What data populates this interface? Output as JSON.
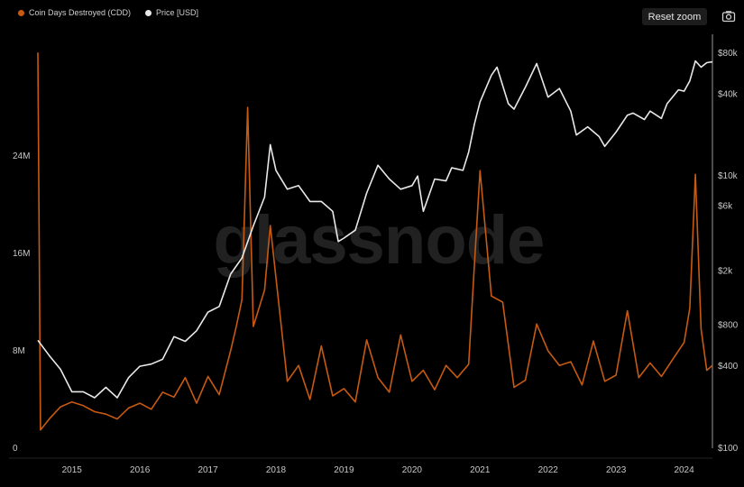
{
  "legend": {
    "cdd_label": "Coin Days Destroyed (CDD)",
    "price_label": "Price [USD]"
  },
  "toolbar": {
    "reset_zoom_label": "Reset zoom",
    "camera_icon": "camera-icon"
  },
  "watermark": "glassnode",
  "colors": {
    "background": "#000000",
    "cdd": "#c75a12",
    "price": "#e8e8e8",
    "axis": "#9a9a9a"
  },
  "chart_data": {
    "type": "line",
    "x_range": [
      "2014-07",
      "2024-06"
    ],
    "x_tick_labels": [
      "2015",
      "2016",
      "2017",
      "2018",
      "2019",
      "2020",
      "2021",
      "2022",
      "2023",
      "2024"
    ],
    "y_left": {
      "ticks": [
        0,
        8000000,
        16000000,
        24000000
      ],
      "tick_labels": [
        "0",
        "8M",
        "16M",
        "24M"
      ],
      "range": [
        0,
        34000000
      ]
    },
    "y_right": {
      "scale": "log",
      "ticks": [
        100,
        400,
        800,
        2000,
        6000,
        10000,
        40000,
        80000
      ],
      "tick_labels": [
        "$100",
        "$400",
        "$800",
        "$2k",
        "$6k",
        "$10k",
        "$40k",
        "$80k"
      ],
      "range": [
        100,
        110000
      ]
    },
    "grid": false,
    "legend_position": "top-left",
    "series": [
      {
        "name": "Coin Days Destroyed (CDD)",
        "axis": "left",
        "points": [
          [
            "2014-07",
            32500000
          ],
          [
            "2014-07-15",
            1500000
          ],
          [
            "2014-09",
            2400000
          ],
          [
            "2014-11",
            3400000
          ],
          [
            "2015-01",
            3800000
          ],
          [
            "2015-03",
            3500000
          ],
          [
            "2015-05",
            3000000
          ],
          [
            "2015-07",
            2800000
          ],
          [
            "2015-09",
            2400000
          ],
          [
            "2015-11",
            3300000
          ],
          [
            "2016-01",
            3700000
          ],
          [
            "2016-03",
            3200000
          ],
          [
            "2016-05",
            4600000
          ],
          [
            "2016-07",
            4200000
          ],
          [
            "2016-09",
            5800000
          ],
          [
            "2016-11",
            3700000
          ],
          [
            "2017-01",
            5900000
          ],
          [
            "2017-03",
            4400000
          ],
          [
            "2017-05",
            8000000
          ],
          [
            "2017-06",
            10000000
          ],
          [
            "2017-07",
            12200000
          ],
          [
            "2017-08",
            28000000
          ],
          [
            "2017-09",
            10000000
          ],
          [
            "2017-11",
            13000000
          ],
          [
            "2017-12",
            18300000
          ],
          [
            "2018-01",
            14000000
          ],
          [
            "2018-03",
            5500000
          ],
          [
            "2018-05",
            6800000
          ],
          [
            "2018-07",
            4000000
          ],
          [
            "2018-09",
            8400000
          ],
          [
            "2018-11",
            4300000
          ],
          [
            "2019-01",
            4900000
          ],
          [
            "2019-03",
            3800000
          ],
          [
            "2019-05",
            8900000
          ],
          [
            "2019-07",
            5800000
          ],
          [
            "2019-09",
            4600000
          ],
          [
            "2019-11",
            9300000
          ],
          [
            "2020-01",
            5500000
          ],
          [
            "2020-03",
            6400000
          ],
          [
            "2020-05",
            4800000
          ],
          [
            "2020-07",
            6800000
          ],
          [
            "2020-09",
            5800000
          ],
          [
            "2020-11",
            6900000
          ],
          [
            "2020-12",
            15000000
          ],
          [
            "2021-01",
            22800000
          ],
          [
            "2021-03",
            12500000
          ],
          [
            "2021-05",
            12000000
          ],
          [
            "2021-07",
            5000000
          ],
          [
            "2021-09",
            5600000
          ],
          [
            "2021-11",
            10200000
          ],
          [
            "2022-01",
            8000000
          ],
          [
            "2022-03",
            6800000
          ],
          [
            "2022-05",
            7100000
          ],
          [
            "2022-07",
            5200000
          ],
          [
            "2022-09",
            8800000
          ],
          [
            "2022-11",
            5500000
          ],
          [
            "2023-01",
            6000000
          ],
          [
            "2023-03",
            11300000
          ],
          [
            "2023-05",
            5800000
          ],
          [
            "2023-07",
            7000000
          ],
          [
            "2023-09",
            5900000
          ],
          [
            "2023-11",
            7300000
          ],
          [
            "2024-01",
            8700000
          ],
          [
            "2024-02",
            11500000
          ],
          [
            "2024-03",
            22500000
          ],
          [
            "2024-04",
            9800000
          ],
          [
            "2024-05",
            6400000
          ],
          [
            "2024-06",
            6800000
          ]
        ]
      },
      {
        "name": "Price [USD]",
        "axis": "right",
        "points": [
          [
            "2014-07",
            620
          ],
          [
            "2014-09",
            480
          ],
          [
            "2014-11",
            380
          ],
          [
            "2015-01",
            260
          ],
          [
            "2015-03",
            260
          ],
          [
            "2015-05",
            235
          ],
          [
            "2015-07",
            280
          ],
          [
            "2015-09",
            235
          ],
          [
            "2015-11",
            330
          ],
          [
            "2016-01",
            400
          ],
          [
            "2016-03",
            415
          ],
          [
            "2016-05",
            450
          ],
          [
            "2016-07",
            660
          ],
          [
            "2016-09",
            610
          ],
          [
            "2016-11",
            730
          ],
          [
            "2017-01",
            1000
          ],
          [
            "2017-03",
            1100
          ],
          [
            "2017-05",
            1900
          ],
          [
            "2017-07",
            2500
          ],
          [
            "2017-09",
            4300
          ],
          [
            "2017-11",
            7000
          ],
          [
            "2017-12",
            17000
          ],
          [
            "2018-01",
            11000
          ],
          [
            "2018-03",
            8000
          ],
          [
            "2018-05",
            8500
          ],
          [
            "2018-07",
            6500
          ],
          [
            "2018-09",
            6500
          ],
          [
            "2018-11",
            5500
          ],
          [
            "2018-12",
            3300
          ],
          [
            "2019-01",
            3500
          ],
          [
            "2019-03",
            4000
          ],
          [
            "2019-05",
            7500
          ],
          [
            "2019-07",
            12000
          ],
          [
            "2019-09",
            9500
          ],
          [
            "2019-11",
            8000
          ],
          [
            "2020-01",
            8500
          ],
          [
            "2020-02",
            10000
          ],
          [
            "2020-03",
            5500
          ],
          [
            "2020-05",
            9500
          ],
          [
            "2020-07",
            9200
          ],
          [
            "2020-08",
            11500
          ],
          [
            "2020-10",
            11000
          ],
          [
            "2020-11",
            15000
          ],
          [
            "2020-12",
            24000
          ],
          [
            "2021-01",
            35000
          ],
          [
            "2021-03",
            55000
          ],
          [
            "2021-04",
            63000
          ],
          [
            "2021-06",
            34000
          ],
          [
            "2021-07",
            31000
          ],
          [
            "2021-09",
            45000
          ],
          [
            "2021-11",
            67000
          ],
          [
            "2022-01",
            38000
          ],
          [
            "2022-03",
            44000
          ],
          [
            "2022-05",
            30000
          ],
          [
            "2022-06",
            20000
          ],
          [
            "2022-08",
            23000
          ],
          [
            "2022-10",
            19500
          ],
          [
            "2022-11",
            16500
          ],
          [
            "2023-01",
            21000
          ],
          [
            "2023-03",
            28000
          ],
          [
            "2023-04",
            29000
          ],
          [
            "2023-06",
            26000
          ],
          [
            "2023-07",
            30000
          ],
          [
            "2023-09",
            26500
          ],
          [
            "2023-10",
            34000
          ],
          [
            "2023-12",
            43000
          ],
          [
            "2024-01",
            42000
          ],
          [
            "2024-02",
            50000
          ],
          [
            "2024-03",
            70000
          ],
          [
            "2024-04",
            63000
          ],
          [
            "2024-05",
            68000
          ],
          [
            "2024-06",
            69000
          ]
        ]
      }
    ]
  }
}
